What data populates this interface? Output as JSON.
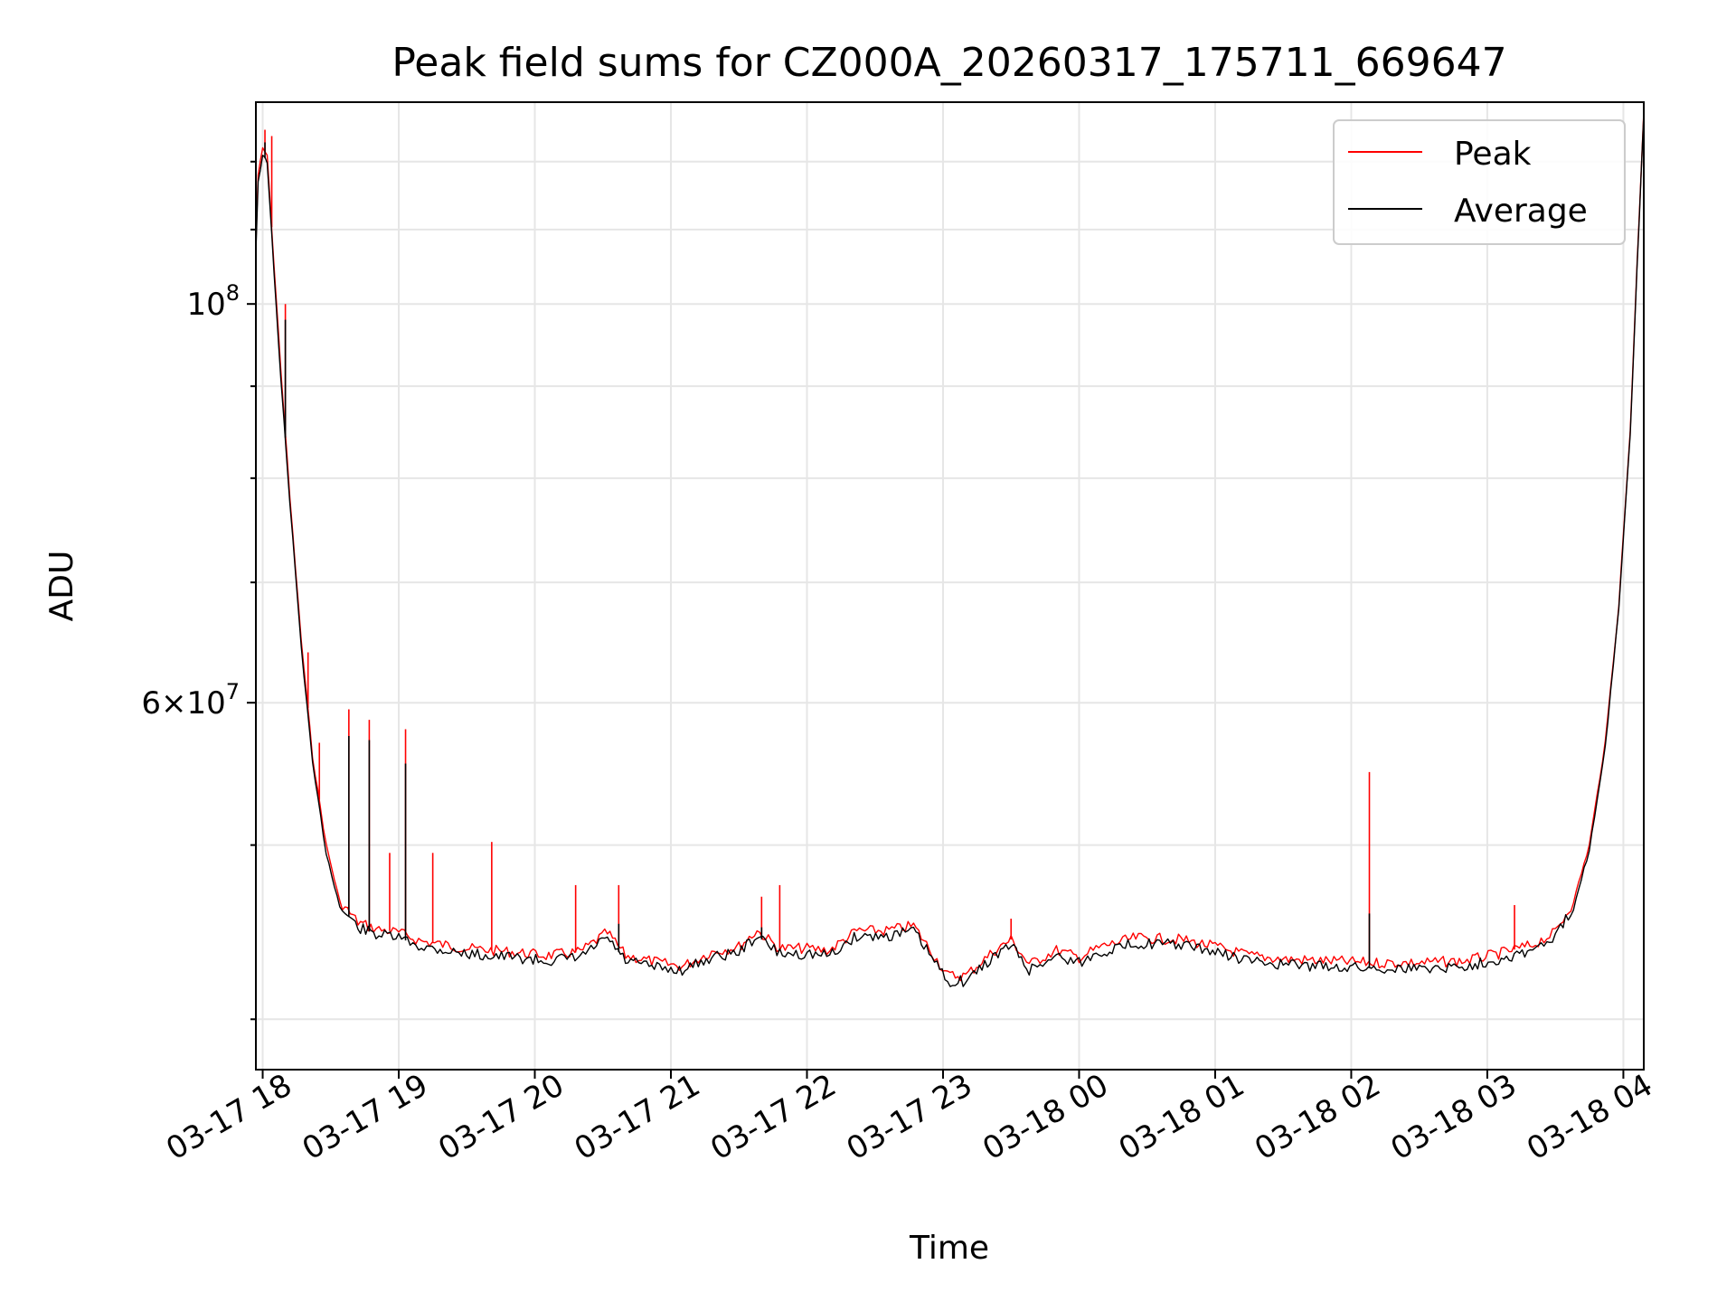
{
  "chart_data": {
    "type": "line",
    "title": "Peak field sums for CZ000A_20260317_175711_669647",
    "xlabel": "Time",
    "ylabel": "ADU",
    "y_scale": "log",
    "ylim": [
      37500000,
      129500000
    ],
    "xlim": [
      "2026-03-17 17:57",
      "2026-03-18 04:09"
    ],
    "grid": true,
    "legend_position": "top-right",
    "x_ticks": [
      "03-17 18",
      "03-17 19",
      "03-17 20",
      "03-17 21",
      "03-17 22",
      "03-17 23",
      "03-18 00",
      "03-18 01",
      "03-18 02",
      "03-18 03",
      "03-18 04"
    ],
    "y_major_ticks": [
      {
        "base": "10",
        "exp": "8",
        "value": 100000000
      },
      {
        "coef": "6",
        "base": "10",
        "exp": "7",
        "value": 60000000
      }
    ],
    "series": [
      {
        "name": "Peak",
        "color": "#ff0000",
        "points": [
          [
            "2026-03-17 17:57",
            108000000
          ],
          [
            "2026-03-17 17:58",
            118000000
          ],
          [
            "2026-03-17 18:00",
            122000000
          ],
          [
            "2026-03-17 18:02",
            121000000
          ],
          [
            "2026-03-17 18:05",
            105000000
          ],
          [
            "2026-03-17 18:08",
            92000000
          ],
          [
            "2026-03-17 18:12",
            78000000
          ],
          [
            "2026-03-17 18:17",
            65000000
          ],
          [
            "2026-03-17 18:22",
            56000000
          ],
          [
            "2026-03-17 18:28",
            50000000
          ],
          [
            "2026-03-17 18:34",
            46500000
          ],
          [
            "2026-03-17 18:42",
            45300000
          ],
          [
            "2026-03-17 18:50",
            44900000
          ],
          [
            "2026-03-17 19:00",
            44700000
          ],
          [
            "2026-03-17 19:10",
            44200000
          ],
          [
            "2026-03-17 19:30",
            43800000
          ],
          [
            "2026-03-17 19:50",
            43600000
          ],
          [
            "2026-03-17 20:05",
            43400000
          ],
          [
            "2026-03-17 20:20",
            43600000
          ],
          [
            "2026-03-17 20:32",
            44700000
          ],
          [
            "2026-03-17 20:40",
            43400000
          ],
          [
            "2026-03-17 20:55",
            43000000
          ],
          [
            "2026-03-17 21:05",
            42800000
          ],
          [
            "2026-03-17 21:18",
            43600000
          ],
          [
            "2026-03-17 21:30",
            43900000
          ],
          [
            "2026-03-17 21:38",
            44800000
          ],
          [
            "2026-03-17 21:48",
            43800000
          ],
          [
            "2026-03-17 22:00",
            43800000
          ],
          [
            "2026-03-17 22:10",
            43700000
          ],
          [
            "2026-03-17 22:22",
            44800000
          ],
          [
            "2026-03-17 22:35",
            44800000
          ],
          [
            "2026-03-17 22:47",
            45100000
          ],
          [
            "2026-03-17 22:55",
            43600000
          ],
          [
            "2026-03-17 23:02",
            42300000
          ],
          [
            "2026-03-17 23:10",
            42300000
          ],
          [
            "2026-03-17 23:22",
            43600000
          ],
          [
            "2026-03-17 23:30",
            44300000
          ],
          [
            "2026-03-17 23:38",
            42900000
          ],
          [
            "2026-03-17 23:50",
            43700000
          ],
          [
            "2026-03-18 00:00",
            43300000
          ],
          [
            "2026-03-18 00:10",
            43900000
          ],
          [
            "2026-03-18 00:25",
            44400000
          ],
          [
            "2026-03-18 00:45",
            44300000
          ],
          [
            "2026-03-18 01:00",
            43900000
          ],
          [
            "2026-03-18 01:15",
            43400000
          ],
          [
            "2026-03-18 01:30",
            43200000
          ],
          [
            "2026-03-18 01:50",
            43100000
          ],
          [
            "2026-03-18 02:10",
            43000000
          ],
          [
            "2026-03-18 02:30",
            43000000
          ],
          [
            "2026-03-18 02:50",
            43100000
          ],
          [
            "2026-03-18 03:05",
            43500000
          ],
          [
            "2026-03-18 03:20",
            44000000
          ],
          [
            "2026-03-18 03:30",
            44700000
          ],
          [
            "2026-03-18 03:38",
            46500000
          ],
          [
            "2026-03-18 03:45",
            50000000
          ],
          [
            "2026-03-18 03:52",
            57000000
          ],
          [
            "2026-03-18 03:58",
            68000000
          ],
          [
            "2026-03-18 04:03",
            85000000
          ],
          [
            "2026-03-18 04:06",
            105000000
          ],
          [
            "2026-03-18 04:09",
            128000000
          ]
        ],
        "spikes": [
          [
            "2026-03-17 18:01",
            125000000
          ],
          [
            "2026-03-17 18:04",
            124000000
          ],
          [
            "2026-03-17 18:10",
            100000000
          ],
          [
            "2026-03-17 18:20",
            64000000
          ],
          [
            "2026-03-17 18:25",
            57000000
          ],
          [
            "2026-03-17 18:38",
            59500000
          ],
          [
            "2026-03-17 18:47",
            58700000
          ],
          [
            "2026-03-17 18:56",
            49500000
          ],
          [
            "2026-03-17 19:03",
            58000000
          ],
          [
            "2026-03-17 19:15",
            49500000
          ],
          [
            "2026-03-17 19:41",
            50200000
          ],
          [
            "2026-03-17 20:18",
            47500000
          ],
          [
            "2026-03-17 20:37",
            47500000
          ],
          [
            "2026-03-17 21:40",
            46800000
          ],
          [
            "2026-03-17 21:48",
            47500000
          ],
          [
            "2026-03-17 23:30",
            45500000
          ],
          [
            "2026-03-18 02:08",
            54900000
          ],
          [
            "2026-03-18 03:12",
            46300000
          ],
          [
            "2026-03-18 03:42",
            48500000
          ]
        ]
      },
      {
        "name": "Average",
        "color": "#000000",
        "points": [
          [
            "2026-03-17 17:57",
            107000000
          ],
          [
            "2026-03-17 17:58",
            117000000
          ],
          [
            "2026-03-17 18:00",
            121000000
          ],
          [
            "2026-03-17 18:02",
            120000000
          ],
          [
            "2026-03-17 18:05",
            104000000
          ],
          [
            "2026-03-17 18:08",
            91000000
          ],
          [
            "2026-03-17 18:12",
            77500000
          ],
          [
            "2026-03-17 18:17",
            64500000
          ],
          [
            "2026-03-17 18:22",
            55500000
          ],
          [
            "2026-03-17 18:28",
            49500000
          ],
          [
            "2026-03-17 18:34",
            46200000
          ],
          [
            "2026-03-17 18:42",
            45000000
          ],
          [
            "2026-03-17 18:50",
            44600000
          ],
          [
            "2026-03-17 19:00",
            44400000
          ],
          [
            "2026-03-17 19:10",
            43900000
          ],
          [
            "2026-03-17 19:30",
            43500000
          ],
          [
            "2026-03-17 19:50",
            43300000
          ],
          [
            "2026-03-17 20:05",
            43100000
          ],
          [
            "2026-03-17 20:20",
            43300000
          ],
          [
            "2026-03-17 20:32",
            44400000
          ],
          [
            "2026-03-17 20:40",
            43100000
          ],
          [
            "2026-03-17 20:55",
            42700000
          ],
          [
            "2026-03-17 21:05",
            42600000
          ],
          [
            "2026-03-17 21:18",
            43300000
          ],
          [
            "2026-03-17 21:30",
            43600000
          ],
          [
            "2026-03-17 21:38",
            44500000
          ],
          [
            "2026-03-17 21:48",
            43500000
          ],
          [
            "2026-03-17 22:00",
            43500000
          ],
          [
            "2026-03-17 22:10",
            43400000
          ],
          [
            "2026-03-17 22:22",
            44500000
          ],
          [
            "2026-03-17 22:35",
            44500000
          ],
          [
            "2026-03-17 22:47",
            44800000
          ],
          [
            "2026-03-17 22:55",
            43300000
          ],
          [
            "2026-03-17 23:02",
            42000000
          ],
          [
            "2026-03-17 23:10",
            42000000
          ],
          [
            "2026-03-17 23:22",
            43300000
          ],
          [
            "2026-03-17 23:30",
            44000000
          ],
          [
            "2026-03-17 23:38",
            42600000
          ],
          [
            "2026-03-17 23:50",
            43400000
          ],
          [
            "2026-03-18 00:00",
            43000000
          ],
          [
            "2026-03-18 00:10",
            43600000
          ],
          [
            "2026-03-18 00:25",
            44100000
          ],
          [
            "2026-03-18 00:45",
            44000000
          ],
          [
            "2026-03-18 01:00",
            43600000
          ],
          [
            "2026-03-18 01:15",
            43100000
          ],
          [
            "2026-03-18 01:30",
            42900000
          ],
          [
            "2026-03-18 01:50",
            42800000
          ],
          [
            "2026-03-18 02:10",
            42700000
          ],
          [
            "2026-03-18 02:30",
            42700000
          ],
          [
            "2026-03-18 02:50",
            42800000
          ],
          [
            "2026-03-18 03:05",
            43200000
          ],
          [
            "2026-03-18 03:20",
            43700000
          ],
          [
            "2026-03-18 03:30",
            44400000
          ],
          [
            "2026-03-18 03:38",
            46200000
          ],
          [
            "2026-03-18 03:45",
            49700000
          ],
          [
            "2026-03-18 03:52",
            56700000
          ],
          [
            "2026-03-18 03:58",
            67700000
          ],
          [
            "2026-03-18 04:03",
            84500000
          ],
          [
            "2026-03-18 04:06",
            104500000
          ],
          [
            "2026-03-18 04:09",
            127500000
          ]
        ],
        "spikes": [
          [
            "2026-03-17 18:01",
            123000000
          ],
          [
            "2026-03-17 18:10",
            98000000
          ],
          [
            "2026-03-17 18:38",
            57500000
          ],
          [
            "2026-03-17 18:47",
            57200000
          ],
          [
            "2026-03-17 19:03",
            55500000
          ],
          [
            "2026-03-17 20:37",
            45200000
          ],
          [
            "2026-03-17 21:40",
            45000000
          ],
          [
            "2026-03-18 02:08",
            45800000
          ]
        ]
      }
    ]
  }
}
